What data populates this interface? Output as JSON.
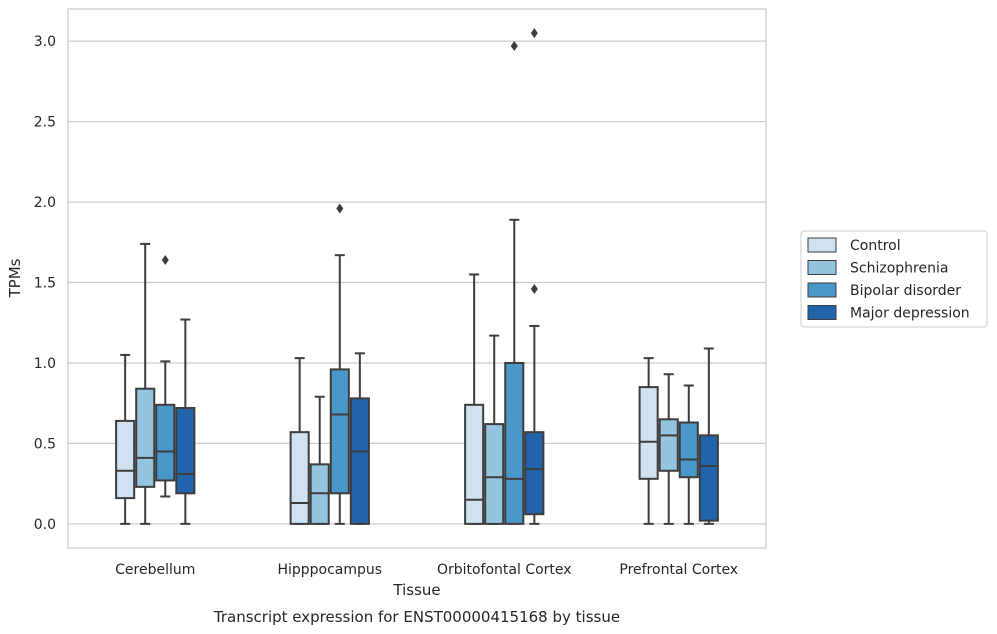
{
  "chart_data": {
    "type": "box",
    "caption": "Transcript expression for ENST00000415168 by tissue",
    "xlabel": "Tissue",
    "ylabel": "TPMs",
    "ylim": [
      -0.15,
      3.2
    ],
    "yticks": [
      0.0,
      0.5,
      1.0,
      1.5,
      2.0,
      2.5,
      3.0
    ],
    "ytick_labels": [
      "0.0",
      "0.5",
      "1.0",
      "1.5",
      "2.0",
      "2.5",
      "3.0"
    ],
    "grid": true,
    "legend_position": "right",
    "categories": [
      "Cerebellum",
      "Hipppocampus",
      "Orbitofontal Cortex",
      "Prefrontal Cortex"
    ],
    "series": [
      {
        "name": "Control",
        "color": "#d0e1f2",
        "boxes": [
          {
            "min": 0.0,
            "q1": 0.16,
            "median": 0.33,
            "q3": 0.64,
            "max": 1.05,
            "outliers": []
          },
          {
            "min": 0.0,
            "q1": 0.0,
            "median": 0.13,
            "q3": 0.57,
            "max": 1.03,
            "outliers": []
          },
          {
            "min": 0.0,
            "q1": 0.0,
            "median": 0.15,
            "q3": 0.74,
            "max": 1.55,
            "outliers": []
          },
          {
            "min": 0.0,
            "q1": 0.28,
            "median": 0.51,
            "q3": 0.85,
            "max": 1.03,
            "outliers": []
          }
        ]
      },
      {
        "name": "Schizophrenia",
        "color": "#94c4df",
        "boxes": [
          {
            "min": 0.0,
            "q1": 0.23,
            "median": 0.41,
            "q3": 0.84,
            "max": 1.74,
            "outliers": []
          },
          {
            "min": 0.0,
            "q1": 0.0,
            "median": 0.19,
            "q3": 0.37,
            "max": 0.79,
            "outliers": []
          },
          {
            "min": 0.0,
            "q1": 0.0,
            "median": 0.29,
            "q3": 0.62,
            "max": 1.17,
            "outliers": []
          },
          {
            "min": 0.0,
            "q1": 0.33,
            "median": 0.55,
            "q3": 0.65,
            "max": 0.93,
            "outliers": []
          }
        ]
      },
      {
        "name": "Bipolar disorder",
        "color": "#4a98c9",
        "boxes": [
          {
            "min": 0.17,
            "q1": 0.27,
            "median": 0.45,
            "q3": 0.74,
            "max": 1.01,
            "outliers": [
              1.64
            ]
          },
          {
            "min": 0.0,
            "q1": 0.19,
            "median": 0.68,
            "q3": 0.96,
            "max": 1.67,
            "outliers": [
              1.96
            ]
          },
          {
            "min": 0.0,
            "q1": 0.0,
            "median": 0.28,
            "q3": 1.0,
            "max": 1.89,
            "outliers": [
              2.97
            ]
          },
          {
            "min": 0.0,
            "q1": 0.29,
            "median": 0.4,
            "q3": 0.63,
            "max": 0.86,
            "outliers": []
          }
        ]
      },
      {
        "name": "Major depression",
        "color": "#2164ab",
        "boxes": [
          {
            "min": 0.0,
            "q1": 0.19,
            "median": 0.31,
            "q3": 0.72,
            "max": 1.27,
            "outliers": []
          },
          {
            "min": 0.0,
            "q1": 0.0,
            "median": 0.45,
            "q3": 0.78,
            "max": 1.06,
            "outliers": []
          },
          {
            "min": 0.0,
            "q1": 0.06,
            "median": 0.34,
            "q3": 0.57,
            "max": 1.23,
            "outliers": [
              1.46,
              3.05
            ]
          },
          {
            "min": 0.0,
            "q1": 0.02,
            "median": 0.36,
            "q3": 0.55,
            "max": 1.09,
            "outliers": []
          }
        ]
      }
    ]
  }
}
